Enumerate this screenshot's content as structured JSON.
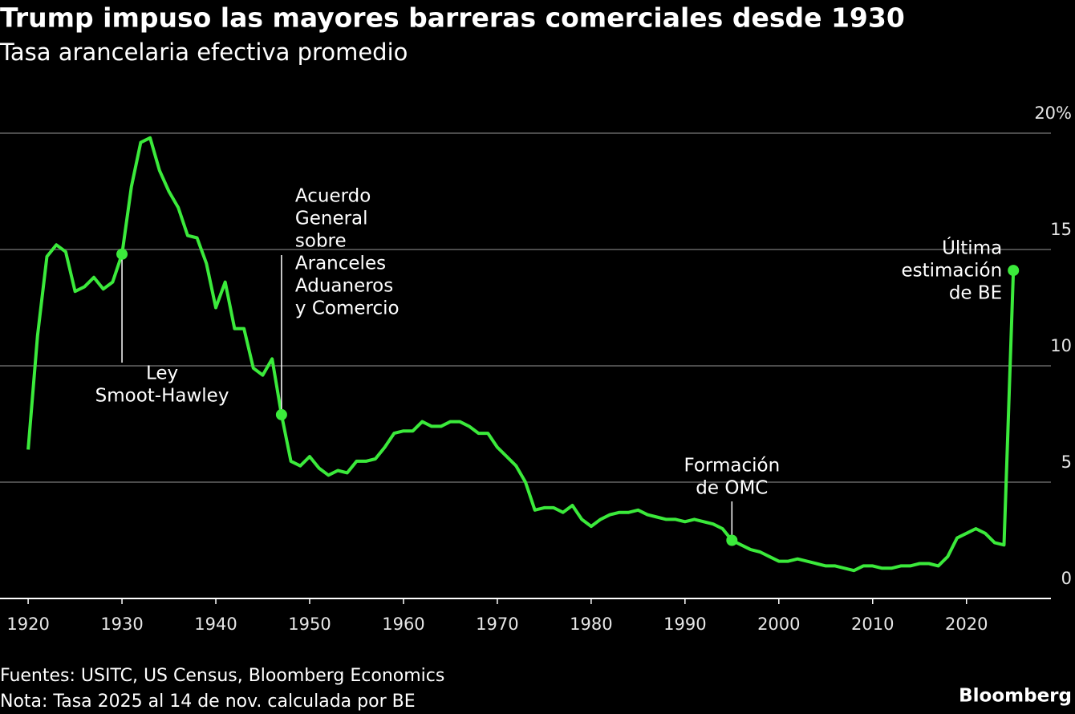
{
  "chart_data": {
    "type": "line",
    "title": "Trump impuso las mayores barreras comerciales desde 1930",
    "subtitle": "Tasa arancelaria efectiva promedio",
    "x": [
      1920,
      1921,
      1922,
      1923,
      1924,
      1925,
      1926,
      1927,
      1928,
      1929,
      1930,
      1931,
      1932,
      1933,
      1934,
      1935,
      1936,
      1937,
      1938,
      1939,
      1940,
      1941,
      1942,
      1943,
      1944,
      1945,
      1946,
      1947,
      1948,
      1949,
      1950,
      1951,
      1952,
      1953,
      1954,
      1955,
      1956,
      1957,
      1958,
      1959,
      1960,
      1961,
      1962,
      1963,
      1964,
      1965,
      1966,
      1967,
      1968,
      1969,
      1970,
      1971,
      1972,
      1973,
      1974,
      1975,
      1976,
      1977,
      1978,
      1979,
      1980,
      1981,
      1982,
      1983,
      1984,
      1985,
      1986,
      1987,
      1988,
      1989,
      1990,
      1991,
      1992,
      1993,
      1994,
      1995,
      1996,
      1997,
      1998,
      1999,
      2000,
      2001,
      2002,
      2003,
      2004,
      2005,
      2006,
      2007,
      2008,
      2009,
      2010,
      2011,
      2012,
      2013,
      2014,
      2015,
      2016,
      2017,
      2018,
      2019,
      2020,
      2021,
      2022,
      2023,
      2024,
      2025
    ],
    "series": [
      {
        "color": "#3bea3b",
        "values": [
          6.4,
          11.3,
          14.7,
          15.2,
          14.9,
          13.2,
          13.4,
          13.8,
          13.3,
          13.6,
          14.8,
          17.7,
          19.6,
          19.8,
          18.4,
          17.5,
          16.8,
          15.6,
          15.5,
          14.4,
          12.5,
          13.6,
          11.6,
          11.6,
          9.9,
          9.6,
          10.3,
          7.9,
          5.9,
          5.7,
          6.1,
          5.6,
          5.3,
          5.5,
          5.4,
          5.9,
          5.9,
          6.0,
          6.5,
          7.1,
          7.2,
          7.2,
          7.6,
          7.4,
          7.4,
          7.6,
          7.6,
          7.4,
          7.1,
          7.1,
          6.5,
          6.1,
          5.7,
          5.0,
          3.8,
          3.9,
          3.9,
          3.7,
          4.0,
          3.4,
          3.1,
          3.4,
          3.6,
          3.7,
          3.7,
          3.8,
          3.6,
          3.5,
          3.4,
          3.4,
          3.3,
          3.4,
          3.3,
          3.2,
          3.0,
          2.5,
          2.3,
          2.1,
          2.0,
          1.8,
          1.6,
          1.6,
          1.7,
          1.6,
          1.5,
          1.4,
          1.4,
          1.3,
          1.2,
          1.4,
          1.4,
          1.3,
          1.3,
          1.4,
          1.4,
          1.5,
          1.5,
          1.4,
          1.8,
          2.6,
          2.8,
          3.0,
          2.8,
          2.4,
          2.3,
          14.1
        ]
      }
    ],
    "xlim": [
      1917,
      2029
    ],
    "xticks": [
      1920,
      1930,
      1940,
      1950,
      1960,
      1970,
      1980,
      1990,
      2000,
      2010,
      2020
    ],
    "ylim": [
      0,
      20
    ],
    "yticks": [
      0,
      5,
      10,
      15,
      {
        "value": 20,
        "label": "20%"
      }
    ],
    "grid": true,
    "annotations": [
      {
        "x": 1930,
        "lines": [
          "Ley",
          "Smoot-Hawley"
        ]
      },
      {
        "x": 1947,
        "lines": [
          "Acuerdo",
          "General",
          "sobre",
          "Aranceles",
          "Aduaneros",
          "y Comercio"
        ]
      },
      {
        "x": 1995,
        "lines": [
          "Formación",
          "de OMC"
        ]
      },
      {
        "x": 2025,
        "lines": [
          "Última",
          "estimación",
          "de BE"
        ]
      }
    ],
    "source": "Fuentes: USITC, US Census, Bloomberg Economics",
    "note": "Nota: Tasa 2025 al 14 de nov. calculada por BE",
    "brand": "Bloomberg"
  }
}
